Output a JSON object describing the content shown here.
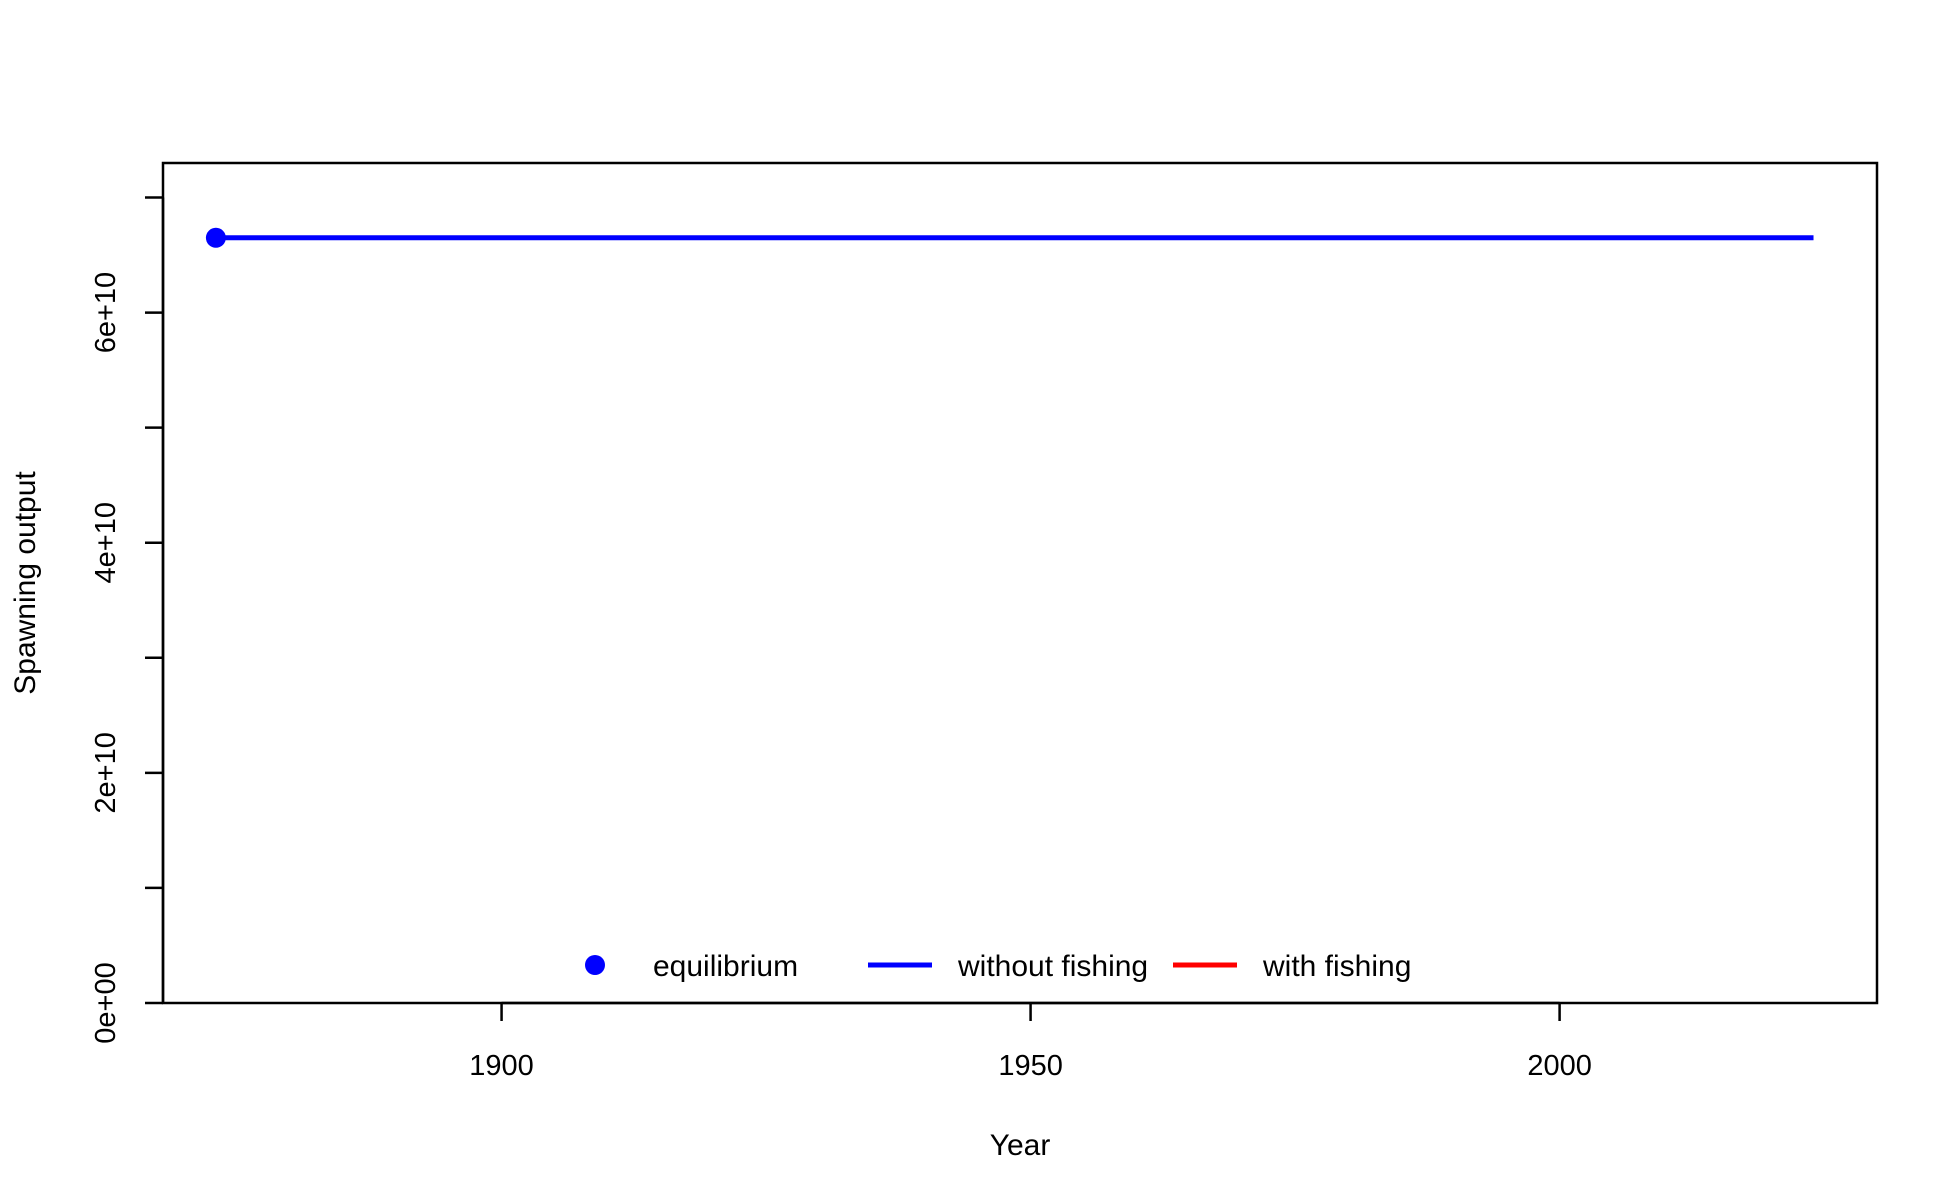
{
  "chart_data": {
    "type": "line",
    "title": "",
    "xlabel": "Year",
    "ylabel": "Spawning output",
    "xlim": [
      1868,
      2030
    ],
    "ylim": [
      0,
      73000000000
    ],
    "x_ticks": [
      1900,
      1950,
      2000
    ],
    "x_tick_labels": [
      "1900",
      "1950",
      "2000"
    ],
    "y_ticks": [
      0,
      10000000000,
      20000000000,
      30000000000,
      40000000000,
      50000000000,
      60000000000,
      70000000000
    ],
    "y_tick_labels": [
      "0e+00",
      "",
      "2e+10",
      "",
      "4e+10",
      "",
      "6e+10",
      ""
    ],
    "grid": false,
    "legend_position": "bottom",
    "series": [
      {
        "name": "equilibrium",
        "kind": "point",
        "color": "#0000ff",
        "x": [
          1873
        ],
        "y": [
          66500000000
        ]
      },
      {
        "name": "without fishing",
        "kind": "line",
        "color": "#0000ff",
        "x": [
          1873,
          2024
        ],
        "y": [
          66500000000,
          66500000000
        ]
      },
      {
        "name": "with fishing",
        "kind": "line",
        "color": "#ff0000",
        "x": [],
        "y": []
      }
    ]
  }
}
